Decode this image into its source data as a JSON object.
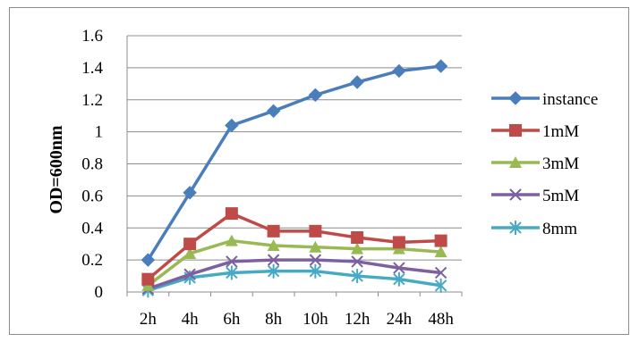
{
  "chart_data": {
    "type": "line",
    "title": "",
    "xlabel": "",
    "ylabel": "OD=600nm",
    "categories": [
      "2h",
      "4h",
      "6h",
      "8h",
      "10h",
      "12h",
      "24h",
      "48h"
    ],
    "ylim": [
      0,
      1.6
    ],
    "yticks": [
      "0",
      "0.2",
      "0.4",
      "0.6",
      "0.8",
      "1",
      "1.2",
      "1.4",
      "1.6"
    ],
    "grid": "horizontal",
    "legend_position": "right",
    "series": [
      {
        "name": "instance",
        "color": "#4a7ebb",
        "marker": "diamond",
        "values": [
          0.2,
          0.62,
          1.04,
          1.13,
          1.23,
          1.31,
          1.38,
          1.41
        ]
      },
      {
        "name": "1mM",
        "color": "#be4b48",
        "marker": "square",
        "values": [
          0.08,
          0.3,
          0.49,
          0.38,
          0.38,
          0.34,
          0.31,
          0.32
        ]
      },
      {
        "name": "3mM",
        "color": "#98b954",
        "marker": "triangle",
        "values": [
          0.04,
          0.24,
          0.32,
          0.29,
          0.28,
          0.27,
          0.27,
          0.25
        ]
      },
      {
        "name": "5mM",
        "color": "#7d60a0",
        "marker": "x",
        "values": [
          0.02,
          0.11,
          0.19,
          0.2,
          0.2,
          0.19,
          0.15,
          0.12
        ]
      },
      {
        "name": "8mm",
        "color": "#46aac5",
        "marker": "star",
        "values": [
          0.01,
          0.09,
          0.12,
          0.13,
          0.13,
          0.1,
          0.08,
          0.04
        ]
      }
    ]
  }
}
